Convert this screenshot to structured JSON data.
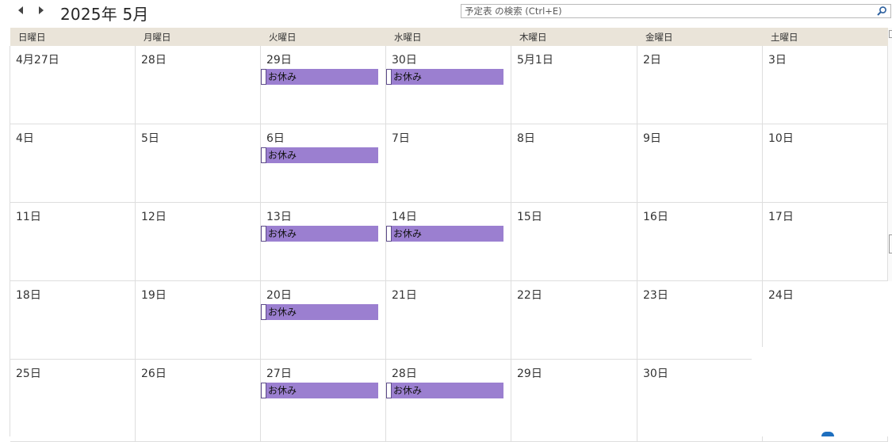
{
  "header": {
    "month_title": "2025年 5月",
    "search_placeholder": "予定表 の検索 (Ctrl+E)"
  },
  "weekdays": [
    "日曜日",
    "月曜日",
    "火曜日",
    "水曜日",
    "木曜日",
    "金曜日",
    "土曜日"
  ],
  "weeks": [
    [
      "4月27日",
      "28日",
      "29日",
      "30日",
      "5月1日",
      "2日",
      "3日"
    ],
    [
      "4日",
      "5日",
      "6日",
      "7日",
      "8日",
      "9日",
      "10日"
    ],
    [
      "11日",
      "12日",
      "13日",
      "14日",
      "15日",
      "16日",
      "17日"
    ],
    [
      "18日",
      "19日",
      "20日",
      "21日",
      "22日",
      "23日",
      "24日"
    ],
    [
      "25日",
      "26日",
      "27日",
      "28日",
      "29日",
      "30日",
      ""
    ]
  ],
  "events": [
    {
      "week": 0,
      "day": 2,
      "title": "お休み"
    },
    {
      "week": 0,
      "day": 3,
      "title": "お休み"
    },
    {
      "week": 1,
      "day": 2,
      "title": "お休み"
    },
    {
      "week": 2,
      "day": 2,
      "title": "お休み"
    },
    {
      "week": 2,
      "day": 3,
      "title": "お休み"
    },
    {
      "week": 3,
      "day": 2,
      "title": "お休み"
    },
    {
      "week": 4,
      "day": 2,
      "title": "お休み"
    },
    {
      "week": 4,
      "day": 3,
      "title": "お休み"
    }
  ],
  "colors": {
    "event_fill": "#9b7fd0",
    "header_bg": "#eae4d9"
  },
  "icons": {
    "prev": "triangle-left-icon",
    "next": "triangle-right-icon",
    "search": "magnifier-icon"
  }
}
